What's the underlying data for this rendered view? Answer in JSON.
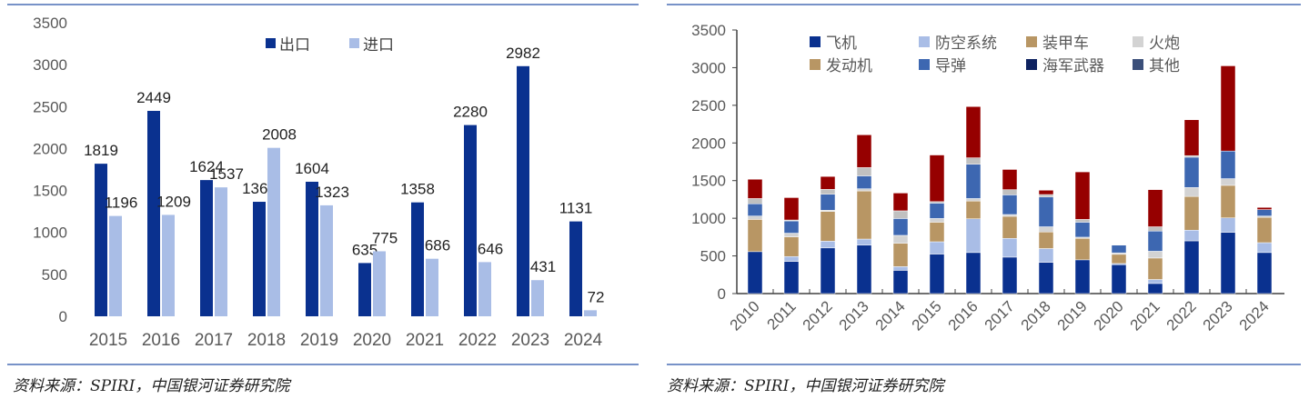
{
  "chart_data": [
    {
      "type": "bar",
      "title": "",
      "xlabel": "",
      "ylabel": "",
      "ylim": [
        0,
        3500
      ],
      "yticks": [
        0,
        500,
        1000,
        1500,
        2000,
        2500,
        3000,
        3500
      ],
      "categories": [
        "2015",
        "2016",
        "2017",
        "2018",
        "2019",
        "2020",
        "2021",
        "2022",
        "2023",
        "2024"
      ],
      "legend_position": "top-center",
      "series": [
        {
          "name": "出口",
          "color": "#0a318f",
          "values": [
            1819,
            2449,
            1624,
            1365,
            1604,
            635,
            1358,
            2280,
            2982,
            1131
          ]
        },
        {
          "name": "进口",
          "color": "#a9bde6",
          "values": [
            1196,
            1209,
            1537,
            2008,
            1323,
            775,
            686,
            646,
            431,
            72
          ]
        }
      ]
    },
    {
      "type": "bar",
      "stacked": true,
      "title": "",
      "xlabel": "",
      "ylabel": "",
      "ylim": [
        0,
        3500
      ],
      "yticks": [
        0,
        500,
        1000,
        1500,
        2000,
        2500,
        3000,
        3500
      ],
      "categories": [
        "2010",
        "2011",
        "2012",
        "2013",
        "2014",
        "2015",
        "2016",
        "2017",
        "2018",
        "2019",
        "2020",
        "2021",
        "2022",
        "2023",
        "2024"
      ],
      "legend_position": "top",
      "series": [
        {
          "name": "飞机",
          "color": "#0a318f",
          "fill": "#0a318f",
          "values": [
            557,
            427,
            606,
            643,
            309,
            525,
            545,
            484,
            415,
            448,
            383,
            134,
            700,
            814,
            545
          ]
        },
        {
          "name": "防空系统",
          "color": "#a9bde6",
          "fill": "#a9bde6",
          "values": [
            0,
            65,
            90,
            81,
            49,
            163,
            448,
            249,
            183,
            0,
            16,
            53,
            142,
            191,
            131
          ]
        },
        {
          "name": "装甲车",
          "color": "#b89664",
          "fill": "#b89664",
          "values": [
            428,
            261,
            395,
            639,
            309,
            260,
            236,
            293,
            220,
            285,
            122,
            285,
            448,
            432,
            337
          ]
        },
        {
          "name": "火炮",
          "color": "#d3d3d3",
          "fill": "#d3d3d3",
          "values": [
            45,
            49,
            16,
            29,
            106,
            49,
            33,
            24,
            69,
            16,
            20,
            90,
            118,
            89,
            17
          ]
        },
        {
          "name": "发动机",
          "color": "#b89664",
          "fill": "#c9a877",
          "values": [
            0,
            0,
            0,
            0,
            0,
            0,
            0,
            0,
            0,
            0,
            0,
            0,
            0,
            0,
            0
          ]
        },
        {
          "name": "导弹",
          "color": "#3d67b1",
          "fill": "#3d67b1",
          "values": [
            162,
            163,
            212,
            171,
            224,
            204,
            456,
            261,
            395,
            199,
            102,
            268,
            403,
            367,
            85
          ]
        },
        {
          "name": "海军武器",
          "color": "#0e2260",
          "fill": "#c0c0c0",
          "values": [
            70,
            12,
            65,
            110,
            102,
            20,
            85,
            69,
            33,
            37,
            0,
            57,
            21,
            0,
            0
          ]
        },
        {
          "name": "其他",
          "color": "#3b4f7a",
          "fill": "#960000",
          "values": [
            256,
            297,
            171,
            435,
            236,
            619,
            680,
            268,
            57,
            631,
            0,
            493,
            476,
            1131,
            29
          ]
        }
      ]
    }
  ],
  "source_left": "资料来源：SPIRI，中国银河证券研究院",
  "source_right": "资料来源：SPIRI，中国银河证券研究院"
}
